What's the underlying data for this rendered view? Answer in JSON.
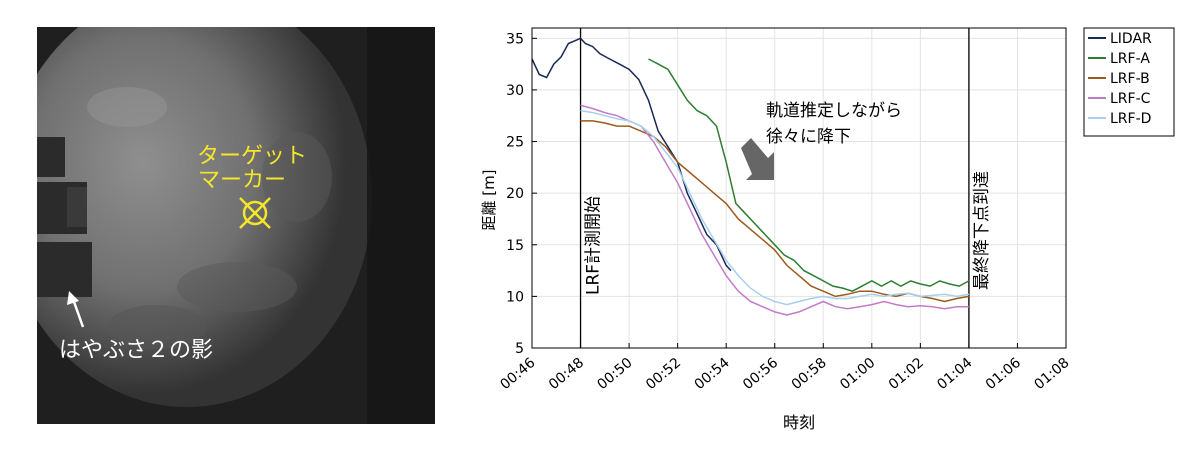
{
  "photo": {
    "target_label_line1": "ターゲット",
    "target_label_line2": "マーカー",
    "shadow_label": "はやぶさ２の影",
    "label_color": "#f5e629",
    "shadow_label_color": "#ffffff"
  },
  "chart_data": {
    "type": "line",
    "xlabel": "時刻",
    "ylabel": "距離 [m]",
    "xlim": [
      46,
      68
    ],
    "ylim": [
      5,
      36
    ],
    "x_ticks": [
      46,
      48,
      50,
      52,
      54,
      56,
      58,
      60,
      62,
      64,
      66,
      68
    ],
    "x_tick_labels": [
      "00:46",
      "00:48",
      "00:50",
      "00:52",
      "00:54",
      "00:56",
      "00:58",
      "01:00",
      "01:02",
      "01:04",
      "01:06",
      "01:08"
    ],
    "y_ticks": [
      5,
      10,
      15,
      20,
      25,
      30,
      35
    ],
    "y_tick_labels": [
      "5",
      "10",
      "15",
      "20",
      "25",
      "30",
      "35"
    ],
    "grid": true,
    "legend_position": "outside-right",
    "series": [
      {
        "name": "LIDAR",
        "color": "#1a2a55",
        "x": [
          46.0,
          46.3,
          46.6,
          46.9,
          47.2,
          47.5,
          47.8,
          48.0,
          48.2,
          48.5,
          48.8,
          49.2,
          49.6,
          50.0,
          50.4,
          50.8,
          51.2,
          51.6,
          52.0,
          52.4,
          52.8,
          53.2,
          53.6,
          54.0,
          54.2
        ],
        "y": [
          33.0,
          31.5,
          31.2,
          32.5,
          33.2,
          34.5,
          34.8,
          35.0,
          34.5,
          34.2,
          33.5,
          33.0,
          32.5,
          32.0,
          31.0,
          29.0,
          26.0,
          24.5,
          23.0,
          20.0,
          18.0,
          16.0,
          15.0,
          13.0,
          12.5
        ]
      },
      {
        "name": "LRF-A",
        "color": "#2e7d32",
        "x": [
          50.8,
          51.2,
          51.6,
          52.0,
          52.4,
          52.8,
          53.2,
          53.6,
          54.0,
          54.4,
          54.8,
          55.2,
          55.6,
          56.0,
          56.4,
          56.8,
          57.2,
          57.6,
          58.0,
          58.4,
          58.8,
          59.2,
          59.6,
          60.0,
          60.4,
          60.8,
          61.2,
          61.6,
          62.0,
          62.4,
          62.8,
          63.2,
          63.6,
          64.0
        ],
        "y": [
          33.0,
          32.5,
          32.0,
          30.5,
          29.0,
          28.0,
          27.5,
          26.5,
          23.0,
          19.0,
          18.0,
          17.0,
          16.0,
          15.0,
          14.0,
          13.5,
          12.5,
          12.0,
          11.5,
          11.0,
          10.8,
          10.5,
          11.0,
          11.5,
          11.0,
          11.5,
          11.0,
          11.5,
          11.2,
          11.0,
          11.5,
          11.2,
          11.0,
          11.5
        ]
      },
      {
        "name": "LRF-B",
        "color": "#9c5a1c",
        "x": [
          48.0,
          48.5,
          49.0,
          49.5,
          50.0,
          50.5,
          51.0,
          51.5,
          52.0,
          52.5,
          53.0,
          53.5,
          54.0,
          54.5,
          55.0,
          55.5,
          56.0,
          56.5,
          57.0,
          57.5,
          58.0,
          58.5,
          59.0,
          59.5,
          60.0,
          60.5,
          61.0,
          61.5,
          62.0,
          62.5,
          63.0,
          63.5,
          64.0
        ],
        "y": [
          27.0,
          27.0,
          26.8,
          26.5,
          26.5,
          26.0,
          25.5,
          24.5,
          23.0,
          22.0,
          21.0,
          20.0,
          19.0,
          17.5,
          16.5,
          15.5,
          14.5,
          13.0,
          12.0,
          11.0,
          10.5,
          10.0,
          10.2,
          10.5,
          10.5,
          10.2,
          10.0,
          10.3,
          10.0,
          9.8,
          9.5,
          9.8,
          10.0
        ]
      },
      {
        "name": "LRF-C",
        "color": "#c27bc9",
        "x": [
          48.0,
          48.5,
          49.0,
          49.5,
          50.0,
          50.5,
          51.0,
          51.5,
          52.0,
          52.5,
          53.0,
          53.5,
          54.0,
          54.5,
          55.0,
          55.5,
          56.0,
          56.5,
          57.0,
          57.5,
          58.0,
          58.5,
          59.0,
          59.5,
          60.0,
          60.5,
          61.0,
          61.5,
          62.0,
          62.5,
          63.0,
          63.5,
          64.0
        ],
        "y": [
          28.5,
          28.2,
          27.8,
          27.5,
          27.0,
          26.5,
          25.0,
          23.0,
          21.0,
          18.5,
          16.0,
          14.0,
          12.0,
          10.5,
          9.5,
          9.0,
          8.5,
          8.2,
          8.5,
          9.0,
          9.5,
          9.0,
          8.8,
          9.0,
          9.2,
          9.5,
          9.2,
          9.0,
          9.1,
          9.0,
          8.8,
          9.0,
          9.0
        ]
      },
      {
        "name": "LRF-D",
        "color": "#a9cfee",
        "x": [
          48.0,
          48.5,
          49.0,
          49.5,
          50.0,
          50.5,
          51.0,
          51.5,
          52.0,
          52.5,
          53.0,
          53.5,
          54.0,
          54.5,
          55.0,
          55.5,
          56.0,
          56.5,
          57.0,
          57.5,
          58.0,
          58.5,
          59.0,
          59.5,
          60.0,
          60.5,
          61.0,
          61.5,
          62.0,
          62.5,
          63.0,
          63.5,
          64.0
        ],
        "y": [
          28.0,
          27.8,
          27.5,
          27.2,
          27.0,
          26.5,
          25.5,
          24.0,
          22.5,
          20.0,
          17.5,
          15.5,
          13.5,
          12.0,
          10.8,
          10.0,
          9.5,
          9.2,
          9.5,
          9.8,
          10.0,
          9.8,
          9.8,
          10.0,
          10.2,
          10.0,
          10.2,
          10.3,
          10.0,
          10.1,
          10.2,
          10.0,
          10.2
        ]
      }
    ],
    "vlines": [
      {
        "x": 48.0,
        "label": "LRF計測開始"
      },
      {
        "x": 64.0,
        "label": "最終降下点到達"
      }
    ],
    "annotation_line1": "軌道推定しながら",
    "annotation_line2": "徐々に降下"
  }
}
